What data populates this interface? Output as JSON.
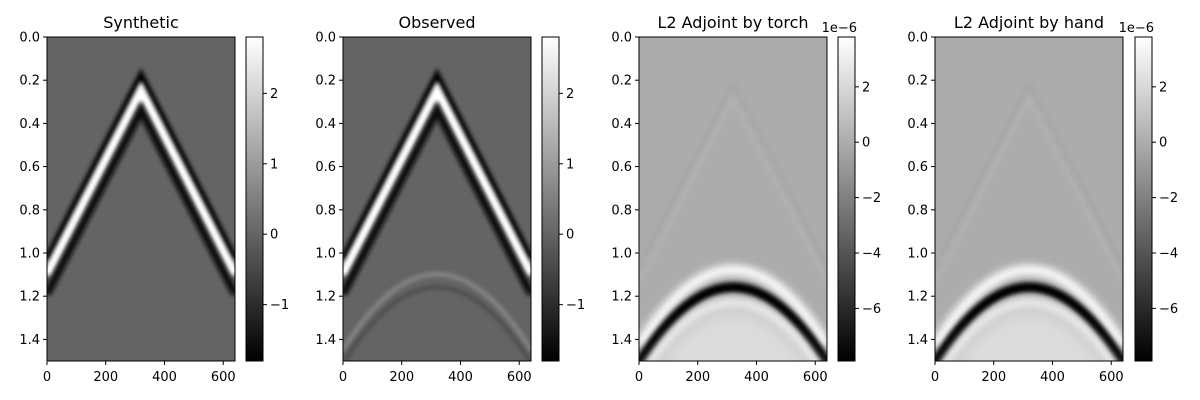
{
  "chart_data": [
    {
      "type": "heatmap",
      "title": "Synthetic",
      "colormap": "gray",
      "x_ticks": [
        "0",
        "200",
        "400",
        "600"
      ],
      "x_tick_values": [
        0,
        200,
        400,
        600
      ],
      "xlim": [
        0,
        640
      ],
      "y_ticks": [
        "0.0",
        "0.2",
        "0.4",
        "0.6",
        "0.8",
        "1.0",
        "1.2",
        "1.4"
      ],
      "y_tick_values": [
        0.0,
        0.2,
        0.4,
        0.6,
        0.8,
        1.0,
        1.2,
        1.4
      ],
      "ylim": [
        1.5,
        0.0
      ],
      "colorbar": {
        "range": [
          -1.8,
          2.8
        ],
        "ticks": [
          "2",
          "1",
          "0",
          "−1"
        ],
        "tick_values": [
          2,
          1,
          0,
          -1
        ],
        "offset_label": ""
      },
      "features": {
        "direct_wave": {
          "apex_x": 320,
          "apex_t": 0.25,
          "edge_t": 1.1,
          "amplitude": "strong"
        },
        "reflection": null
      }
    },
    {
      "type": "heatmap",
      "title": "Observed",
      "colormap": "gray",
      "x_ticks": [
        "0",
        "200",
        "400",
        "600"
      ],
      "x_tick_values": [
        0,
        200,
        400,
        600
      ],
      "xlim": [
        0,
        640
      ],
      "y_ticks": [
        "0.0",
        "0.2",
        "0.4",
        "0.6",
        "0.8",
        "1.0",
        "1.2",
        "1.4"
      ],
      "y_tick_values": [
        0.0,
        0.2,
        0.4,
        0.6,
        0.8,
        1.0,
        1.2,
        1.4
      ],
      "ylim": [
        1.5,
        0.0
      ],
      "colorbar": {
        "range": [
          -1.8,
          2.8
        ],
        "ticks": [
          "2",
          "1",
          "0",
          "−1"
        ],
        "tick_values": [
          2,
          1,
          0,
          -1
        ],
        "offset_label": ""
      },
      "features": {
        "direct_wave": {
          "apex_x": 320,
          "apex_t": 0.25,
          "edge_t": 1.1,
          "amplitude": "strong"
        },
        "reflection": {
          "apex_x": 320,
          "apex_t": 1.1,
          "edge_t": 1.47,
          "amplitude": "faint"
        }
      }
    },
    {
      "type": "heatmap",
      "title": "L2 Adjoint by torch",
      "colormap": "gray",
      "x_ticks": [
        "0",
        "200",
        "400",
        "600"
      ],
      "x_tick_values": [
        0,
        200,
        400,
        600
      ],
      "xlim": [
        0,
        640
      ],
      "y_ticks": [
        "0.0",
        "0.2",
        "0.4",
        "0.6",
        "0.8",
        "1.0",
        "1.2",
        "1.4"
      ],
      "y_tick_values": [
        0.0,
        0.2,
        0.4,
        0.6,
        0.8,
        1.0,
        1.2,
        1.4
      ],
      "ylim": [
        1.5,
        0.0
      ],
      "colorbar": {
        "range": [
          -7.9,
          3.8
        ],
        "ticks": [
          "2",
          "0",
          "−2",
          "−4",
          "−6"
        ],
        "tick_values": [
          2,
          0,
          -2,
          -4,
          -6
        ],
        "offset_label": "1e−6"
      },
      "features": {
        "direct_wave": {
          "apex_x": 320,
          "apex_t": 0.25,
          "edge_t": 1.1,
          "amplitude": "faint"
        },
        "reflection": {
          "apex_x": 320,
          "apex_t": 1.1,
          "edge_t": 1.47,
          "amplitude": "strong"
        }
      }
    },
    {
      "type": "heatmap",
      "title": "L2 Adjoint by hand",
      "colormap": "gray",
      "x_ticks": [
        "0",
        "200",
        "400",
        "600"
      ],
      "x_tick_values": [
        0,
        200,
        400,
        600
      ],
      "xlim": [
        0,
        640
      ],
      "y_ticks": [
        "0.0",
        "0.2",
        "0.4",
        "0.6",
        "0.8",
        "1.0",
        "1.2",
        "1.4"
      ],
      "y_tick_values": [
        0.0,
        0.2,
        0.4,
        0.6,
        0.8,
        1.0,
        1.2,
        1.4
      ],
      "ylim": [
        1.5,
        0.0
      ],
      "colorbar": {
        "range": [
          -7.9,
          3.8
        ],
        "ticks": [
          "2",
          "0",
          "−2",
          "−4",
          "−6"
        ],
        "tick_values": [
          2,
          0,
          -2,
          -4,
          -6
        ],
        "offset_label": "1e−6"
      },
      "features": {
        "direct_wave": {
          "apex_x": 320,
          "apex_t": 0.25,
          "edge_t": 1.1,
          "amplitude": "faint"
        },
        "reflection": {
          "apex_x": 320,
          "apex_t": 1.1,
          "edge_t": 1.47,
          "amplitude": "strong"
        }
      }
    }
  ]
}
